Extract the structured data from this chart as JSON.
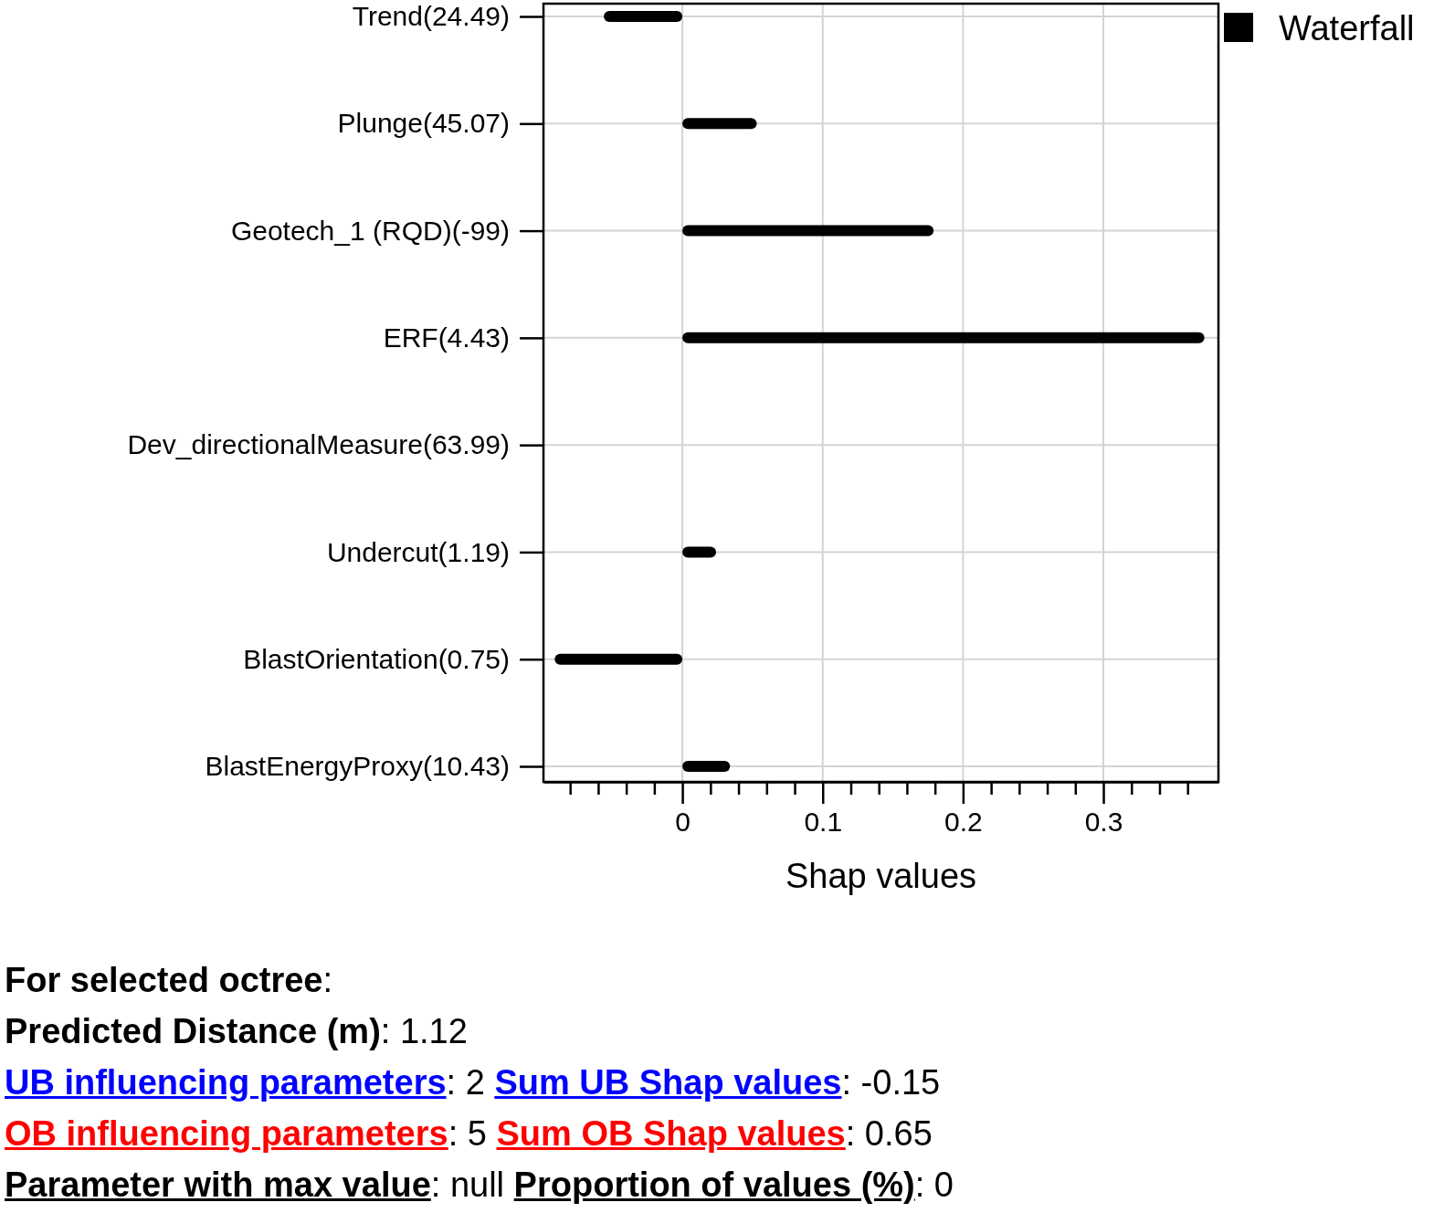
{
  "chart_data": {
    "type": "bar",
    "orientation": "horizontal",
    "categories": [
      "Trend(24.49)",
      "Plunge(45.07)",
      "Geotech_1 (RQD)(-99)",
      "ERF(4.43)",
      "Dev_directionalMeasure(63.99)",
      "Undercut(1.19)",
      "BlastOrientation(0.75)",
      "BlastEnergyProxy(10.43)"
    ],
    "series": [
      {
        "name": "Waterfall",
        "color": "#000000",
        "values": [
          -0.056,
          0.053,
          0.179,
          0.372,
          0,
          0.024,
          -0.091,
          0.034
        ]
      }
    ],
    "xlabel": "Shap values",
    "xlim": [
      -0.099,
      0.382
    ],
    "xticks": [
      {
        "value": -0.08,
        "label": null
      },
      {
        "value": -0.06,
        "label": null
      },
      {
        "value": -0.04,
        "label": null
      },
      {
        "value": -0.02,
        "label": null
      },
      0,
      {
        "value": 0.02,
        "label": null
      },
      {
        "value": 0.04,
        "label": null
      },
      {
        "value": 0.06,
        "label": null
      },
      {
        "value": 0.08,
        "label": null
      },
      0.1,
      {
        "value": 0.12,
        "label": null
      },
      {
        "value": 0.14,
        "label": null
      },
      {
        "value": 0.16,
        "label": null
      },
      {
        "value": 0.18,
        "label": null
      },
      0.2,
      {
        "value": 0.22,
        "label": null
      },
      {
        "value": 0.24,
        "label": null
      },
      {
        "value": 0.26,
        "label": null
      },
      {
        "value": 0.28,
        "label": null
      },
      0.3,
      {
        "value": 0.32,
        "label": null
      },
      {
        "value": 0.34,
        "label": null
      },
      {
        "value": 0.36,
        "label": null
      }
    ],
    "grid": true,
    "legend": "top right",
    "annotations": [
      "For selected octree:",
      "Predicted Distance (m): 1.12",
      "UB influencing parameters: 2 Sum UB Shap values: -0.15",
      "OB influencing parameters: 5 Sum OB Shap values: 0.65",
      "Parameter with max value: null Proportion of values (%): 0"
    ]
  }
}
